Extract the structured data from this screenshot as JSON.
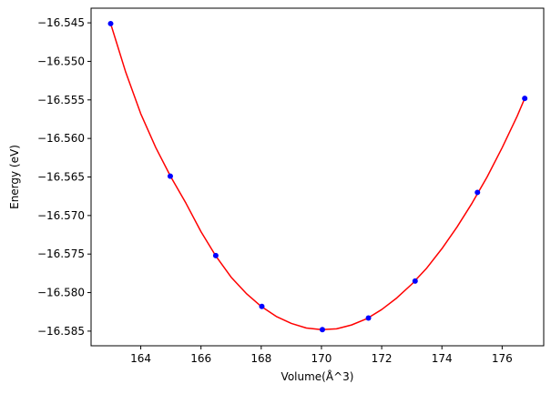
{
  "chart_data": {
    "type": "scatter",
    "title": "",
    "xlabel": "Volume(Å^3)",
    "ylabel": "Energy (eV)",
    "xlim": [
      162.35,
      177.38
    ],
    "ylim": [
      -16.5869,
      -16.5431
    ],
    "xticks": [
      164,
      166,
      168,
      170,
      172,
      174,
      176
    ],
    "yticks": [
      -16.545,
      -16.55,
      -16.555,
      -16.56,
      -16.565,
      -16.57,
      -16.575,
      -16.58,
      -16.585
    ],
    "xtick_labels": [
      "164",
      "166",
      "168",
      "170",
      "172",
      "174",
      "176"
    ],
    "ytick_labels": [
      "−16.545",
      "−16.550",
      "−16.555",
      "−16.560",
      "−16.565",
      "−16.570",
      "−16.575",
      "−16.580",
      "−16.585"
    ],
    "grid": false,
    "series": [
      {
        "kind": "points",
        "color": "#0000ff",
        "x": [
          163.0,
          164.98,
          166.49,
          168.02,
          170.03,
          171.56,
          173.11,
          175.18,
          176.75
        ],
        "y": [
          -16.5451,
          -16.5649,
          -16.5752,
          -16.5818,
          -16.5848,
          -16.5833,
          -16.5785,
          -16.567,
          -16.5548
        ]
      },
      {
        "kind": "fit-curve",
        "color": "#ff0000",
        "x": [
          163.0,
          163.5,
          164.0,
          164.5,
          165.0,
          165.5,
          166.0,
          166.5,
          167.0,
          167.5,
          168.0,
          168.5,
          169.0,
          169.5,
          170.0,
          170.5,
          171.0,
          171.5,
          172.0,
          172.5,
          173.0,
          173.5,
          174.0,
          174.5,
          175.0,
          175.5,
          176.0,
          176.5,
          176.75
        ],
        "y": [
          -16.5451,
          -16.5514,
          -16.5568,
          -16.5612,
          -16.565,
          -16.5684,
          -16.5721,
          -16.5753,
          -16.578,
          -16.5801,
          -16.5818,
          -16.5831,
          -16.584,
          -16.5846,
          -16.5848,
          -16.5847,
          -16.5842,
          -16.5834,
          -16.5822,
          -16.5807,
          -16.5789,
          -16.5768,
          -16.5743,
          -16.5715,
          -16.5684,
          -16.565,
          -16.5612,
          -16.5571,
          -16.5548
        ]
      }
    ]
  }
}
